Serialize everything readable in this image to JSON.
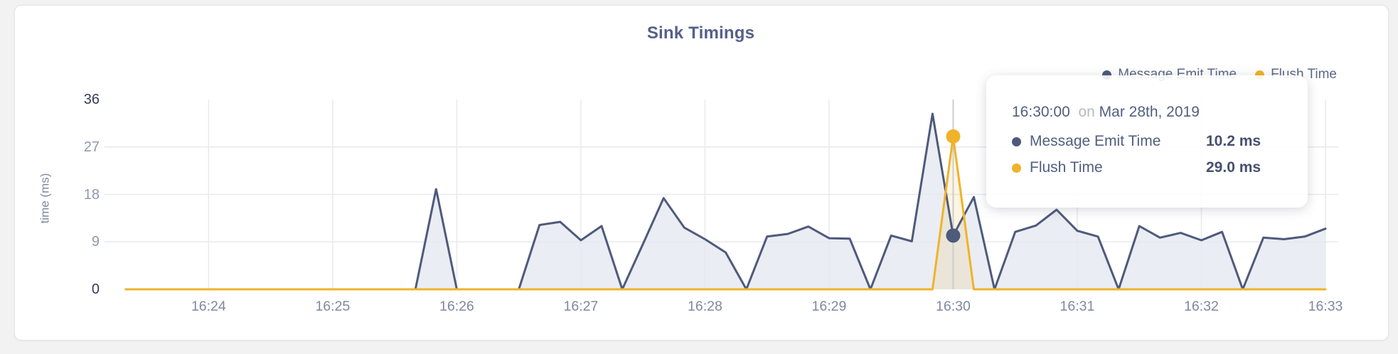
{
  "page": {
    "title": "Sink Timings"
  },
  "y_axis": {
    "label": "time (ms)",
    "ticks": [
      0,
      9,
      18,
      27,
      36
    ],
    "grid_at": [
      9,
      18,
      27
    ],
    "strong": [
      0,
      36
    ]
  },
  "x_axis": {
    "ticks": [
      "16:24",
      "16:25",
      "16:26",
      "16:27",
      "16:28",
      "16:29",
      "16:30",
      "16:31",
      "16:32",
      "16:33"
    ]
  },
  "tooltip": {
    "time": "16:30:00",
    "joiner": "on",
    "date": "Mar 28th, 2019",
    "rows": [
      {
        "label": "Message Emit Time",
        "value": "10.2 ms"
      },
      {
        "label": "Flush Time",
        "value": "29.0 ms"
      }
    ]
  },
  "colors": {
    "grid": "#e9eaec",
    "crosshair": "#cbcdd1",
    "title_text": "#556089",
    "axis_text": "#7e89a0",
    "axis_text_strong": "#333c5b"
  },
  "chart_data": {
    "type": "area",
    "title": "Sink Timings",
    "xlabel": "",
    "ylabel": "time (ms)",
    "ylim": [
      0,
      36
    ],
    "x_interval_seconds": 10,
    "grid": true,
    "legend_position": "top-right",
    "highlight_x": "16:30:00",
    "x": [
      "16:23:20",
      "16:23:30",
      "16:23:40",
      "16:23:50",
      "16:24:00",
      "16:24:10",
      "16:24:20",
      "16:24:30",
      "16:24:40",
      "16:24:50",
      "16:25:00",
      "16:25:10",
      "16:25:20",
      "16:25:30",
      "16:25:40",
      "16:25:50",
      "16:26:00",
      "16:26:10",
      "16:26:20",
      "16:26:30",
      "16:26:40",
      "16:26:50",
      "16:27:00",
      "16:27:10",
      "16:27:20",
      "16:27:30",
      "16:27:40",
      "16:27:50",
      "16:28:00",
      "16:28:10",
      "16:28:20",
      "16:28:30",
      "16:28:40",
      "16:28:50",
      "16:29:00",
      "16:29:10",
      "16:29:20",
      "16:29:30",
      "16:29:40",
      "16:29:50",
      "16:30:00",
      "16:30:10",
      "16:30:20",
      "16:30:30",
      "16:30:40",
      "16:30:50",
      "16:31:00",
      "16:31:10",
      "16:31:20",
      "16:31:30",
      "16:31:40",
      "16:31:50",
      "16:32:00",
      "16:32:10",
      "16:32:20",
      "16:32:30",
      "16:32:40",
      "16:32:50",
      "16:33:00"
    ],
    "series": [
      {
        "name": "Message Emit Time",
        "color": "#4e5a7c",
        "fill": "#e5e8f0",
        "fill_opacity": 0.8,
        "values": [
          0,
          0,
          0,
          0,
          0,
          0,
          0,
          0,
          0,
          0,
          0,
          0,
          0,
          0,
          0,
          19,
          0,
          0,
          0,
          0,
          12.2,
          12.8,
          9.3,
          12,
          0,
          8.6,
          17.3,
          11.7,
          9.5,
          7,
          0,
          10,
          10.5,
          11.9,
          9.7,
          9.6,
          0,
          10.2,
          9.1,
          33.3,
          10.2,
          17.5,
          0,
          10.9,
          12.1,
          15.1,
          11.1,
          10,
          0,
          12,
          9.8,
          10.7,
          9.3,
          10.9,
          0,
          9.8,
          9.5,
          10,
          11.5
        ]
      },
      {
        "name": "Flush Time",
        "color": "#efb32a",
        "fill": "#efb32a",
        "fill_opacity": 0.13,
        "values": [
          0,
          0,
          0,
          0,
          0,
          0,
          0,
          0,
          0,
          0,
          0,
          0,
          0,
          0,
          0,
          0,
          0,
          0,
          0,
          0,
          0,
          0,
          0,
          0,
          0,
          0,
          0,
          0,
          0,
          0,
          0,
          0,
          0,
          0,
          0,
          0,
          0,
          0,
          0,
          0,
          29,
          0,
          0,
          0,
          0,
          0,
          0,
          0,
          0,
          0,
          0,
          0,
          0,
          0,
          0,
          0,
          0,
          0,
          0
        ]
      }
    ]
  }
}
